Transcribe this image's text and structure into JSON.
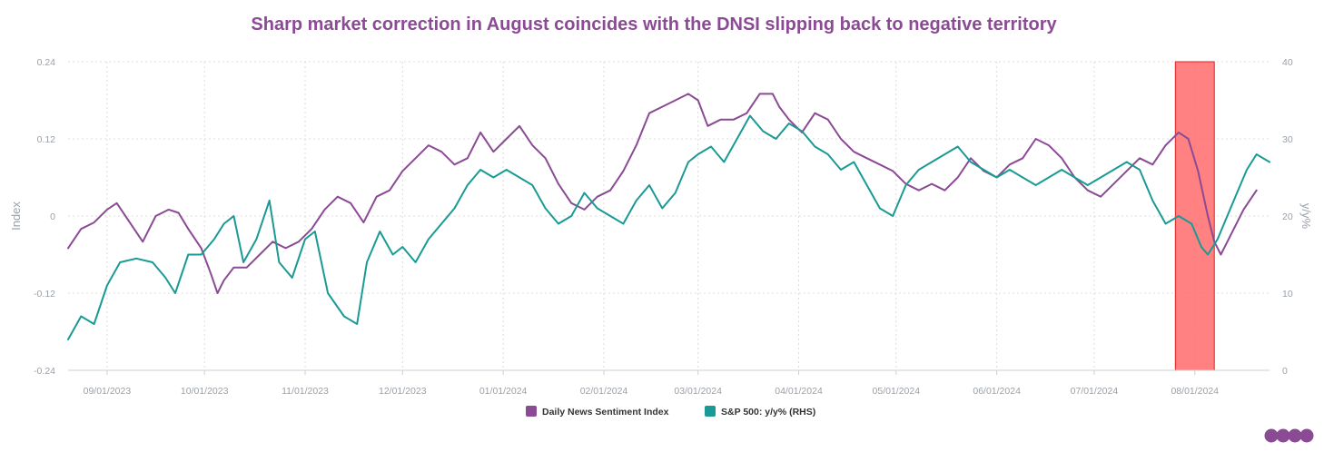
{
  "chart_data": {
    "type": "line",
    "title": "Sharp market correction in August coincides with the DNSI slipping back to negative territory",
    "ylabel_left": "Index",
    "ylabel_right": "y/y%",
    "ylim_left": [
      -0.24,
      0.24
    ],
    "ylim_right": [
      0,
      40
    ],
    "yticks_left": [
      "-0.24",
      "-0.12",
      "0",
      "0.12",
      "0.24"
    ],
    "yticks_right": [
      "0",
      "10",
      "20",
      "30",
      "40"
    ],
    "grid": true,
    "legend_position": "bottom-center",
    "x_start": "2023-08-20",
    "x_end": "2024-08-24",
    "x_tick_labels": [
      "09/01/2023",
      "10/01/2023",
      "11/01/2023",
      "12/01/2023",
      "01/01/2024",
      "02/01/2024",
      "03/01/2024",
      "04/01/2024",
      "05/01/2024",
      "06/01/2024",
      "07/01/2024",
      "08/01/2024"
    ],
    "x_tick_dates": [
      "2023-09-01",
      "2023-10-01",
      "2023-11-01",
      "2023-12-01",
      "2024-01-01",
      "2024-02-01",
      "2024-03-01",
      "2024-04-01",
      "2024-05-01",
      "2024-06-01",
      "2024-07-01",
      "2024-08-01"
    ],
    "highlight": {
      "start": "2024-07-26",
      "end": "2024-08-07",
      "color": "#ff6b6b"
    },
    "series": [
      {
        "name": "Daily News Sentiment Index",
        "axis": "left",
        "color": "#8b4a94",
        "points": [
          [
            "2023-08-20",
            -0.05
          ],
          [
            "2023-08-24",
            -0.02
          ],
          [
            "2023-08-28",
            -0.01
          ],
          [
            "2023-09-01",
            0.01
          ],
          [
            "2023-09-04",
            0.02
          ],
          [
            "2023-09-08",
            -0.01
          ],
          [
            "2023-09-12",
            -0.04
          ],
          [
            "2023-09-16",
            0.0
          ],
          [
            "2023-09-20",
            0.01
          ],
          [
            "2023-09-23",
            0.005
          ],
          [
            "2023-09-26",
            -0.02
          ],
          [
            "2023-09-30",
            -0.05
          ],
          [
            "2023-10-03",
            -0.09
          ],
          [
            "2023-10-05",
            -0.12
          ],
          [
            "2023-10-07",
            -0.1
          ],
          [
            "2023-10-10",
            -0.08
          ],
          [
            "2023-10-14",
            -0.08
          ],
          [
            "2023-10-18",
            -0.06
          ],
          [
            "2023-10-22",
            -0.04
          ],
          [
            "2023-10-26",
            -0.05
          ],
          [
            "2023-10-30",
            -0.04
          ],
          [
            "2023-11-03",
            -0.02
          ],
          [
            "2023-11-07",
            0.01
          ],
          [
            "2023-11-11",
            0.03
          ],
          [
            "2023-11-15",
            0.02
          ],
          [
            "2023-11-19",
            -0.01
          ],
          [
            "2023-11-23",
            0.03
          ],
          [
            "2023-11-27",
            0.04
          ],
          [
            "2023-12-01",
            0.07
          ],
          [
            "2023-12-05",
            0.09
          ],
          [
            "2023-12-09",
            0.11
          ],
          [
            "2023-12-13",
            0.1
          ],
          [
            "2023-12-17",
            0.08
          ],
          [
            "2023-12-21",
            0.09
          ],
          [
            "2023-12-25",
            0.13
          ],
          [
            "2023-12-29",
            0.1
          ],
          [
            "2024-01-02",
            0.12
          ],
          [
            "2024-01-06",
            0.14
          ],
          [
            "2024-01-10",
            0.11
          ],
          [
            "2024-01-14",
            0.09
          ],
          [
            "2024-01-18",
            0.05
          ],
          [
            "2024-01-22",
            0.02
          ],
          [
            "2024-01-26",
            0.01
          ],
          [
            "2024-01-30",
            0.03
          ],
          [
            "2024-02-03",
            0.04
          ],
          [
            "2024-02-07",
            0.07
          ],
          [
            "2024-02-11",
            0.11
          ],
          [
            "2024-02-15",
            0.16
          ],
          [
            "2024-02-19",
            0.17
          ],
          [
            "2024-02-23",
            0.18
          ],
          [
            "2024-02-27",
            0.19
          ],
          [
            "2024-03-01",
            0.18
          ],
          [
            "2024-03-04",
            0.14
          ],
          [
            "2024-03-08",
            0.15
          ],
          [
            "2024-03-12",
            0.15
          ],
          [
            "2024-03-16",
            0.16
          ],
          [
            "2024-03-20",
            0.19
          ],
          [
            "2024-03-24",
            0.19
          ],
          [
            "2024-03-26",
            0.17
          ],
          [
            "2024-03-29",
            0.15
          ],
          [
            "2024-04-02",
            0.13
          ],
          [
            "2024-04-06",
            0.16
          ],
          [
            "2024-04-10",
            0.15
          ],
          [
            "2024-04-14",
            0.12
          ],
          [
            "2024-04-18",
            0.1
          ],
          [
            "2024-04-22",
            0.09
          ],
          [
            "2024-04-26",
            0.08
          ],
          [
            "2024-04-30",
            0.07
          ],
          [
            "2024-05-04",
            0.05
          ],
          [
            "2024-05-08",
            0.04
          ],
          [
            "2024-05-12",
            0.05
          ],
          [
            "2024-05-16",
            0.04
          ],
          [
            "2024-05-20",
            0.06
          ],
          [
            "2024-05-24",
            0.09
          ],
          [
            "2024-05-28",
            0.07
          ],
          [
            "2024-06-01",
            0.06
          ],
          [
            "2024-06-05",
            0.08
          ],
          [
            "2024-06-09",
            0.09
          ],
          [
            "2024-06-13",
            0.12
          ],
          [
            "2024-06-17",
            0.11
          ],
          [
            "2024-06-21",
            0.09
          ],
          [
            "2024-06-25",
            0.06
          ],
          [
            "2024-06-29",
            0.04
          ],
          [
            "2024-07-03",
            0.03
          ],
          [
            "2024-07-07",
            0.05
          ],
          [
            "2024-07-11",
            0.07
          ],
          [
            "2024-07-15",
            0.09
          ],
          [
            "2024-07-19",
            0.08
          ],
          [
            "2024-07-23",
            0.11
          ],
          [
            "2024-07-27",
            0.13
          ],
          [
            "2024-07-30",
            0.12
          ],
          [
            "2024-08-02",
            0.07
          ],
          [
            "2024-08-05",
            0.0
          ],
          [
            "2024-08-07",
            -0.04
          ],
          [
            "2024-08-09",
            -0.06
          ],
          [
            "2024-08-12",
            -0.03
          ],
          [
            "2024-08-16",
            0.01
          ],
          [
            "2024-08-20",
            0.04
          ]
        ]
      },
      {
        "name": "S&P 500: y/y% (RHS)",
        "axis": "right",
        "color": "#1a9a94",
        "points": [
          [
            "2023-08-20",
            4
          ],
          [
            "2023-08-24",
            7
          ],
          [
            "2023-08-28",
            6
          ],
          [
            "2023-09-01",
            11
          ],
          [
            "2023-09-05",
            14
          ],
          [
            "2023-09-10",
            14.5
          ],
          [
            "2023-09-15",
            14
          ],
          [
            "2023-09-19",
            12
          ],
          [
            "2023-09-22",
            10
          ],
          [
            "2023-09-26",
            15
          ],
          [
            "2023-09-30",
            15
          ],
          [
            "2023-10-04",
            17
          ],
          [
            "2023-10-07",
            19
          ],
          [
            "2023-10-10",
            20
          ],
          [
            "2023-10-13",
            14
          ],
          [
            "2023-10-17",
            17
          ],
          [
            "2023-10-21",
            22
          ],
          [
            "2023-10-24",
            14
          ],
          [
            "2023-10-28",
            12
          ],
          [
            "2023-11-01",
            17
          ],
          [
            "2023-11-04",
            18
          ],
          [
            "2023-11-08",
            10
          ],
          [
            "2023-11-13",
            7
          ],
          [
            "2023-11-17",
            6
          ],
          [
            "2023-11-20",
            14
          ],
          [
            "2023-11-24",
            18
          ],
          [
            "2023-11-28",
            15
          ],
          [
            "2023-12-01",
            16
          ],
          [
            "2023-12-05",
            14
          ],
          [
            "2023-12-09",
            17
          ],
          [
            "2023-12-13",
            19
          ],
          [
            "2023-12-17",
            21
          ],
          [
            "2023-12-21",
            24
          ],
          [
            "2023-12-25",
            26
          ],
          [
            "2023-12-29",
            25
          ],
          [
            "2024-01-02",
            26
          ],
          [
            "2024-01-06",
            25
          ],
          [
            "2024-01-10",
            24
          ],
          [
            "2024-01-14",
            21
          ],
          [
            "2024-01-18",
            19
          ],
          [
            "2024-01-22",
            20
          ],
          [
            "2024-01-26",
            23
          ],
          [
            "2024-01-30",
            21
          ],
          [
            "2024-02-03",
            20
          ],
          [
            "2024-02-07",
            19
          ],
          [
            "2024-02-11",
            22
          ],
          [
            "2024-02-15",
            24
          ],
          [
            "2024-02-19",
            21
          ],
          [
            "2024-02-23",
            23
          ],
          [
            "2024-02-27",
            27
          ],
          [
            "2024-03-01",
            28
          ],
          [
            "2024-03-05",
            29
          ],
          [
            "2024-03-09",
            27
          ],
          [
            "2024-03-13",
            30
          ],
          [
            "2024-03-17",
            33
          ],
          [
            "2024-03-21",
            31
          ],
          [
            "2024-03-25",
            30
          ],
          [
            "2024-03-29",
            32
          ],
          [
            "2024-04-02",
            31
          ],
          [
            "2024-04-06",
            29
          ],
          [
            "2024-04-10",
            28
          ],
          [
            "2024-04-14",
            26
          ],
          [
            "2024-04-18",
            27
          ],
          [
            "2024-04-22",
            24
          ],
          [
            "2024-04-26",
            21
          ],
          [
            "2024-04-30",
            20
          ],
          [
            "2024-05-04",
            24
          ],
          [
            "2024-05-08",
            26
          ],
          [
            "2024-05-12",
            27
          ],
          [
            "2024-05-16",
            28
          ],
          [
            "2024-05-20",
            29
          ],
          [
            "2024-05-24",
            27
          ],
          [
            "2024-05-28",
            26
          ],
          [
            "2024-06-01",
            25
          ],
          [
            "2024-06-05",
            26
          ],
          [
            "2024-06-09",
            25
          ],
          [
            "2024-06-13",
            24
          ],
          [
            "2024-06-17",
            25
          ],
          [
            "2024-06-21",
            26
          ],
          [
            "2024-06-25",
            25
          ],
          [
            "2024-06-29",
            24
          ],
          [
            "2024-07-03",
            25
          ],
          [
            "2024-07-07",
            26
          ],
          [
            "2024-07-11",
            27
          ],
          [
            "2024-07-15",
            26
          ],
          [
            "2024-07-19",
            22
          ],
          [
            "2024-07-23",
            19
          ],
          [
            "2024-07-27",
            20
          ],
          [
            "2024-07-31",
            19
          ],
          [
            "2024-08-03",
            16
          ],
          [
            "2024-08-05",
            15
          ],
          [
            "2024-08-08",
            17
          ],
          [
            "2024-08-11",
            20
          ],
          [
            "2024-08-14",
            23
          ],
          [
            "2024-08-17",
            26
          ],
          [
            "2024-08-20",
            28
          ],
          [
            "2024-08-24",
            27
          ]
        ]
      }
    ]
  },
  "logo": {
    "text": [
      "C",
      "E",
      "I",
      "C"
    ],
    "color": "#8b4a94"
  }
}
